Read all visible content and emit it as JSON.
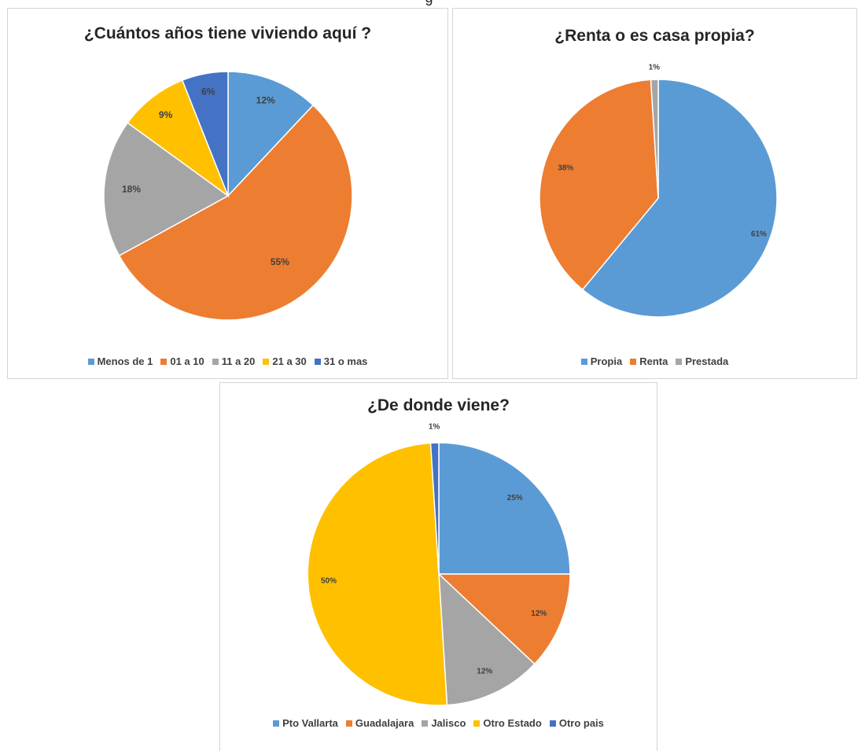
{
  "page": {
    "title_fragment": "g"
  },
  "colors": {
    "blue": "#5B9BD5",
    "orange": "#ED7D31",
    "gray": "#A5A5A5",
    "yellow": "#FFC000",
    "darkblue": "#4472C4"
  },
  "chart_data": [
    {
      "type": "pie",
      "title": "¿Cuántos años tiene viviendo aquí ?",
      "categories": [
        "Menos de 1",
        "01 a 10",
        "11 a 20",
        "21 a 30",
        "31 o mas"
      ],
      "values": [
        12,
        55,
        18,
        9,
        6
      ],
      "labels": [
        "12%",
        "55%",
        "18%",
        "9%",
        "6%"
      ],
      "colors": [
        "#5B9BD5",
        "#ED7D31",
        "#A5A5A5",
        "#FFC000",
        "#4472C4"
      ],
      "legend": "bottom"
    },
    {
      "type": "pie",
      "title": "¿Renta o es casa propia?",
      "categories": [
        "Propia",
        "Renta",
        "Prestada"
      ],
      "values": [
        61,
        38,
        1
      ],
      "labels": [
        "61%",
        "38%",
        "1%"
      ],
      "colors": [
        "#5B9BD5",
        "#ED7D31",
        "#A5A5A5"
      ],
      "legend": "bottom"
    },
    {
      "type": "pie",
      "title": "¿De donde viene?",
      "categories": [
        "Pto Vallarta",
        "Guadalajara",
        "Jalisco",
        "Otro Estado",
        "Otro pais"
      ],
      "values": [
        25,
        12,
        12,
        50,
        1
      ],
      "labels": [
        "25%",
        "12%",
        "12%",
        "50%",
        "1%"
      ],
      "colors": [
        "#5B9BD5",
        "#ED7D31",
        "#A5A5A5",
        "#FFC000",
        "#4472C4"
      ],
      "legend": "bottom"
    }
  ]
}
